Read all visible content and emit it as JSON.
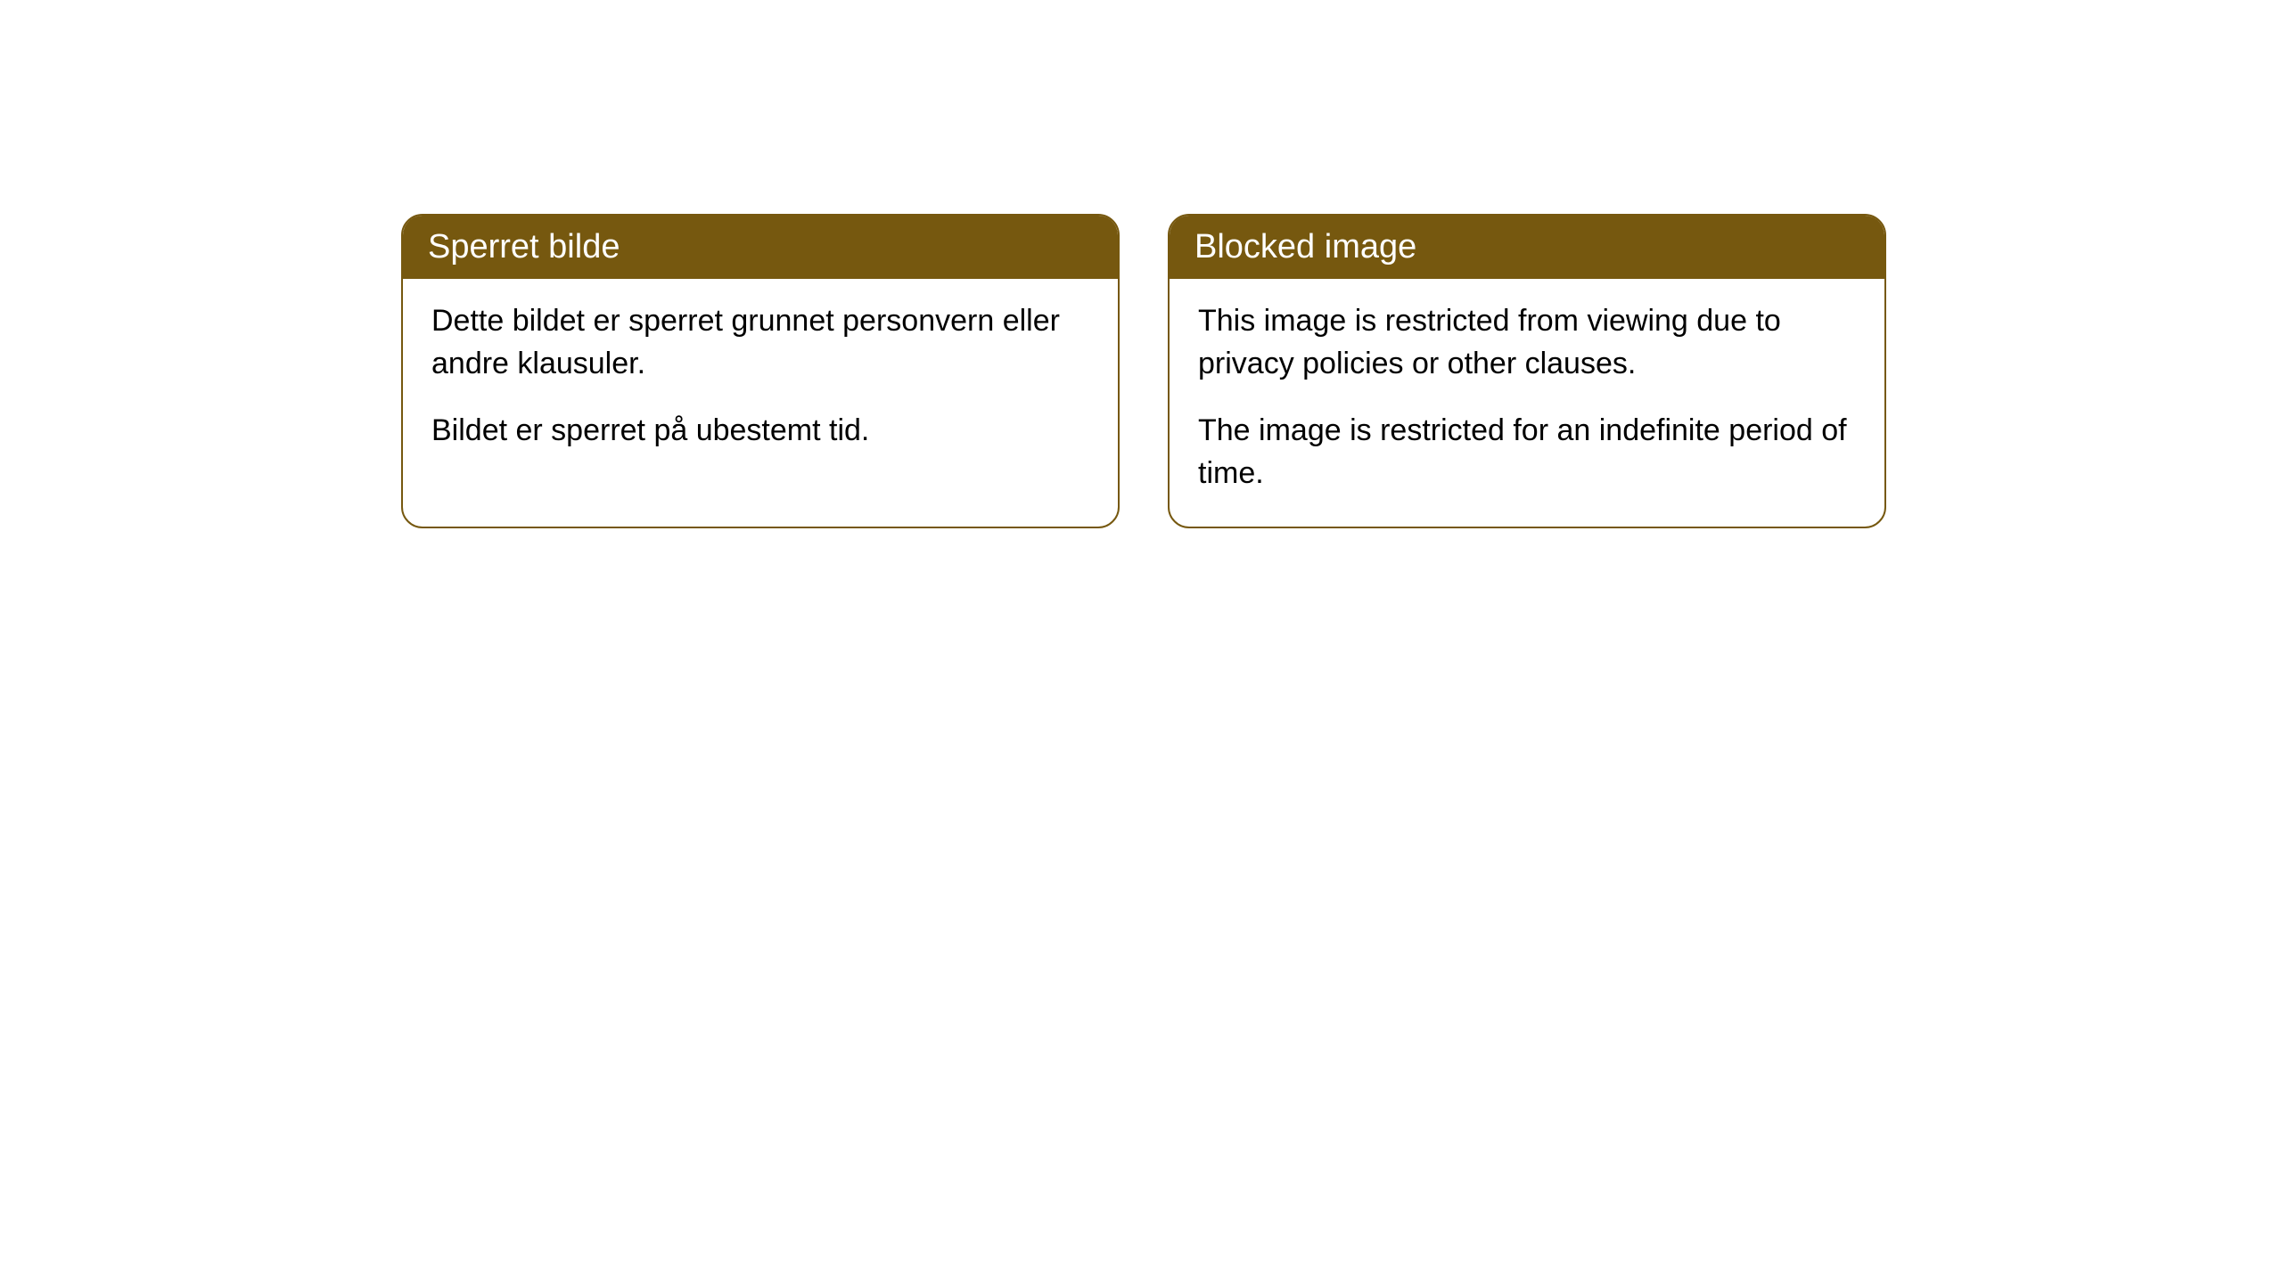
{
  "cards": [
    {
      "header": "Sperret bilde",
      "paragraph1": "Dette bildet er sperret grunnet personvern eller andre klausuler.",
      "paragraph2": "Bildet er sperret på ubestemt tid."
    },
    {
      "header": "Blocked image",
      "paragraph1": "This image is restricted from viewing due to privacy policies or other clauses.",
      "paragraph2": "The image is restricted for an indefinite period of time."
    }
  ],
  "styling": {
    "header_background": "#76580f",
    "header_text_color": "#ffffff",
    "border_color": "#76580f",
    "body_background": "#ffffff",
    "body_text_color": "#000000",
    "border_radius": 24,
    "header_fontsize": 38,
    "body_fontsize": 34
  }
}
